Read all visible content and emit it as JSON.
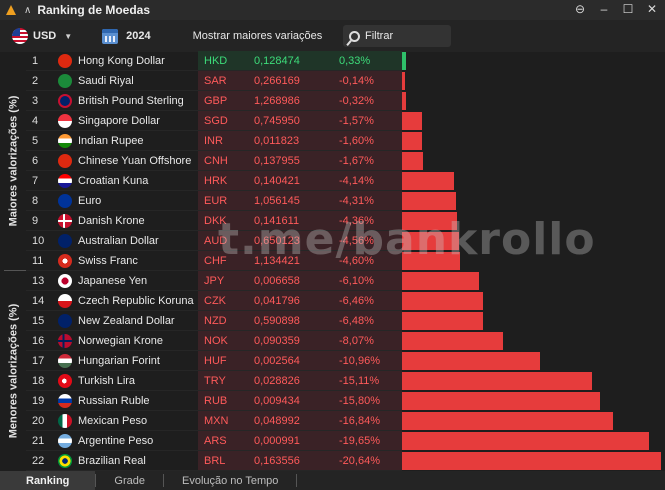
{
  "window": {
    "title": "Ranking de Moedas"
  },
  "toolbar": {
    "currency": "USD",
    "year": "2024",
    "show_variations_label": "Mostrar maiores variações",
    "filter_placeholder": "Filtrar"
  },
  "side_labels": {
    "top": "Maiores valorizações (%)",
    "bottom": "Menores valorizações (%)"
  },
  "watermark": "t.me/bankrollo",
  "tabs": [
    "Ranking",
    "Grade",
    "Evolução no Tempo"
  ],
  "active_tab": "Ranking",
  "colors": {
    "positive": "#3ddc7a",
    "negative": "#ff5a5a",
    "bar_negative": "#e63c3c",
    "bar_positive": "#2fc06a"
  },
  "rows": [
    {
      "rank": "1",
      "name": "Hong Kong Dollar",
      "code": "HKD",
      "price": "0,128474",
      "variation": "0,33%",
      "value": 0.33,
      "flag": "hk-flag-icon"
    },
    {
      "rank": "2",
      "name": "Saudi Riyal",
      "code": "SAR",
      "price": "0,266169",
      "variation": "-0,14%",
      "value": -0.14,
      "flag": "sa-flag-icon"
    },
    {
      "rank": "3",
      "name": "British Pound Sterling",
      "code": "GBP",
      "price": "1,268986",
      "variation": "-0,32%",
      "value": -0.32,
      "flag": "gb-flag-icon"
    },
    {
      "rank": "4",
      "name": "Singapore Dollar",
      "code": "SGD",
      "price": "0,745950",
      "variation": "-1,57%",
      "value": -1.57,
      "flag": "sg-flag-icon"
    },
    {
      "rank": "5",
      "name": "Indian Rupee",
      "code": "INR",
      "price": "0,011823",
      "variation": "-1,60%",
      "value": -1.6,
      "flag": "in-flag-icon"
    },
    {
      "rank": "6",
      "name": "Chinese Yuan Offshore",
      "code": "CNH",
      "price": "0,137955",
      "variation": "-1,67%",
      "value": -1.67,
      "flag": "cn-flag-icon"
    },
    {
      "rank": "7",
      "name": "Croatian Kuna",
      "code": "HRK",
      "price": "0,140421",
      "variation": "-4,14%",
      "value": -4.14,
      "flag": "hr-flag-icon"
    },
    {
      "rank": "8",
      "name": "Euro",
      "code": "EUR",
      "price": "1,056145",
      "variation": "-4,31%",
      "value": -4.31,
      "flag": "eu-flag-icon"
    },
    {
      "rank": "9",
      "name": "Danish Krone",
      "code": "DKK",
      "price": "0,141611",
      "variation": "-4,36%",
      "value": -4.36,
      "flag": "dk-flag-icon"
    },
    {
      "rank": "10",
      "name": "Australian Dollar",
      "code": "AUD",
      "price": "0,650123",
      "variation": "-4,56%",
      "value": -4.56,
      "flag": "au-flag-icon"
    },
    {
      "rank": "11",
      "name": "Swiss Franc",
      "code": "CHF",
      "price": "1,134421",
      "variation": "-4,60%",
      "value": -4.6,
      "flag": "ch-flag-icon"
    },
    {
      "rank": "13",
      "name": "Japanese Yen",
      "code": "JPY",
      "price": "0,006658",
      "variation": "-6,10%",
      "value": -6.1,
      "flag": "jp-flag-icon"
    },
    {
      "rank": "14",
      "name": "Czech Republic Koruna",
      "code": "CZK",
      "price": "0,041796",
      "variation": "-6,46%",
      "value": -6.46,
      "flag": "cz-flag-icon"
    },
    {
      "rank": "15",
      "name": "New Zealand Dollar",
      "code": "NZD",
      "price": "0,590898",
      "variation": "-6,48%",
      "value": -6.48,
      "flag": "nz-flag-icon"
    },
    {
      "rank": "16",
      "name": "Norwegian Krone",
      "code": "NOK",
      "price": "0,090359",
      "variation": "-8,07%",
      "value": -8.07,
      "flag": "no-flag-icon"
    },
    {
      "rank": "17",
      "name": "Hungarian Forint",
      "code": "HUF",
      "price": "0,002564",
      "variation": "-10,96%",
      "value": -10.96,
      "flag": "hu-flag-icon"
    },
    {
      "rank": "18",
      "name": "Turkish Lira",
      "code": "TRY",
      "price": "0,028826",
      "variation": "-15,11%",
      "value": -15.11,
      "flag": "tr-flag-icon"
    },
    {
      "rank": "19",
      "name": "Russian Ruble",
      "code": "RUB",
      "price": "0,009434",
      "variation": "-15,80%",
      "value": -15.8,
      "flag": "ru-flag-icon"
    },
    {
      "rank": "20",
      "name": "Mexican Peso",
      "code": "MXN",
      "price": "0,048992",
      "variation": "-16,84%",
      "value": -16.84,
      "flag": "mx-flag-icon"
    },
    {
      "rank": "21",
      "name": "Argentine Peso",
      "code": "ARS",
      "price": "0,000991",
      "variation": "-19,65%",
      "value": -19.65,
      "flag": "ar-flag-icon"
    },
    {
      "rank": "22",
      "name": "Brazilian Real",
      "code": "BRL",
      "price": "0,163556",
      "variation": "-20,64%",
      "value": -20.64,
      "flag": "br-flag-icon"
    }
  ]
}
